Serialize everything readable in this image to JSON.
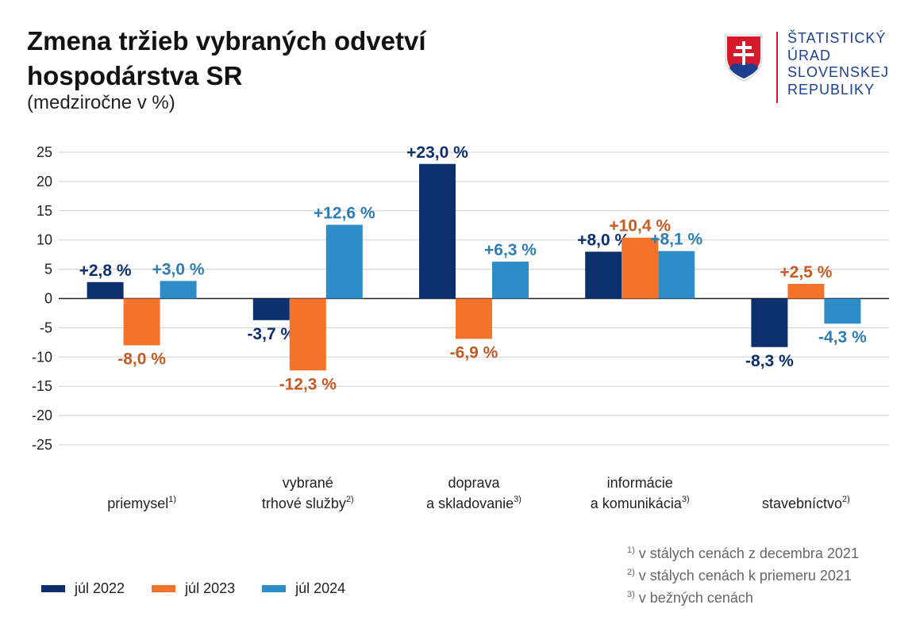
{
  "header": {
    "title": "Zmena tržieb vybraných odvetví hospodárstva SR",
    "subtitle": "(medziročne v %)"
  },
  "logo": {
    "lines": [
      "ŠTATISTICKÝ",
      "ÚRAD",
      "SLOVENSKEJ",
      "REPUBLIKY"
    ],
    "colors": {
      "red": "#d6182b",
      "blue": "#1d3f8e",
      "white": "#ffffff"
    }
  },
  "footnotes": [
    {
      "mark": "1)",
      "text": "v stálych cenách z decembra 2021"
    },
    {
      "mark": "2)",
      "text": "v stálych cenách k priemeru 2021"
    },
    {
      "mark": "3)",
      "text": "v bežných cenách"
    }
  ],
  "chart_data": {
    "type": "bar",
    "title": "Zmena tržieb vybraných odvetví hospodárstva SR",
    "ylabel": "",
    "xlabel": "",
    "ylim": [
      -25,
      25
    ],
    "yticks": [
      25,
      20,
      15,
      10,
      5,
      0,
      -5,
      -10,
      -15,
      -20,
      -25
    ],
    "grid": true,
    "legend_position": "bottom-left",
    "categories": [
      {
        "lines": [
          "",
          "priemysel"
        ],
        "sup": "1)"
      },
      {
        "lines": [
          "vybrané",
          "trhové služby"
        ],
        "sup": "2)"
      },
      {
        "lines": [
          "doprava",
          "a skladovanie"
        ],
        "sup": "3)"
      },
      {
        "lines": [
          "informácie",
          "a komunikácia"
        ],
        "sup": "3)"
      },
      {
        "lines": [
          "",
          "stavebníctvo"
        ],
        "sup": "2)"
      }
    ],
    "series": [
      {
        "name": "júl 2022",
        "color": "#0d2f6e",
        "label_color": "#0d2f6e",
        "values": [
          2.8,
          -3.7,
          23.0,
          8.0,
          -8.3
        ],
        "labels": [
          "+2,8 %",
          "-3,7 %",
          "+23,0 %",
          "+8,0 %",
          "-8,3 %"
        ]
      },
      {
        "name": "júl 2023",
        "color": "#f4732a",
        "label_color": "#c55a23",
        "values": [
          -8.0,
          -12.3,
          -6.9,
          10.4,
          2.5
        ],
        "labels": [
          "-8,0 %",
          "-12,3 %",
          "-6,9 %",
          "+10,4 %",
          "+2,5 %"
        ]
      },
      {
        "name": "júl 2024",
        "color": "#2e8cc8",
        "label_color": "#2e7db4",
        "values": [
          3.0,
          12.6,
          6.3,
          8.1,
          -4.3
        ],
        "labels": [
          "+3,0 %",
          "+12,6 %",
          "+6,3 %",
          "+8,1 %",
          "-4,3 %"
        ]
      }
    ]
  }
}
